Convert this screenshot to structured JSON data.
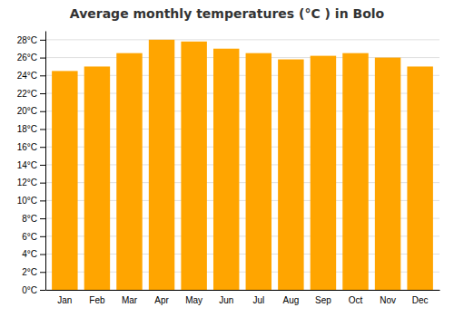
{
  "chart_data": {
    "type": "bar",
    "title": "Average monthly temperatures (°C ) in Bolo",
    "categories": [
      "Jan",
      "Feb",
      "Mar",
      "Apr",
      "May",
      "Jun",
      "Jul",
      "Aug",
      "Sep",
      "Oct",
      "Nov",
      "Dec"
    ],
    "values": [
      24.5,
      25.0,
      26.5,
      28.0,
      27.8,
      27.0,
      26.5,
      25.8,
      26.2,
      26.5,
      26.0,
      25.0
    ],
    "color": "#FFA500",
    "ylim": [
      0,
      29
    ],
    "yticks": [
      {
        "value": 0,
        "label": "0°C"
      },
      {
        "value": 2,
        "label": "2°C"
      },
      {
        "value": 4,
        "label": "4°C"
      },
      {
        "value": 6,
        "label": "6°C"
      },
      {
        "value": 8,
        "label": "8°C"
      },
      {
        "value": 10,
        "label": "10°C"
      },
      {
        "value": 12,
        "label": "12°C"
      },
      {
        "value": 14,
        "label": "14°C"
      },
      {
        "value": 16,
        "label": "16°C"
      },
      {
        "value": 18,
        "label": "18°C"
      },
      {
        "value": 20,
        "label": "20°C"
      },
      {
        "value": 22,
        "label": "22°C"
      },
      {
        "value": 24,
        "label": "24°C"
      },
      {
        "value": 26,
        "label": "26°C"
      },
      {
        "value": 28,
        "label": "28°C"
      }
    ],
    "grid": true
  }
}
